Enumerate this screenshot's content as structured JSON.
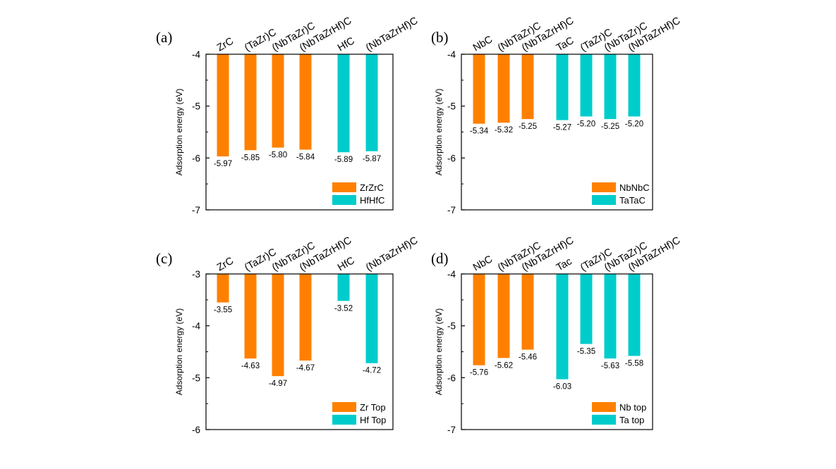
{
  "colors": {
    "orange": "#ff8000",
    "cyan": "#00cccc"
  },
  "chart_data": [
    {
      "panel": "(a)",
      "type": "bar",
      "ylabel": "Adsorption energy (eV)",
      "ylim": [
        -7,
        -4
      ],
      "yticks": [
        "-4",
        "-5",
        "-6",
        "-7"
      ],
      "categories": [
        "ZrC",
        "(TaZr)C",
        "(NbTaZr)C",
        "(NbTaZrHf)C",
        "HfC",
        "(NbTaZrHf)C"
      ],
      "values": [
        -5.97,
        -5.85,
        -5.8,
        -5.84,
        -5.89,
        -5.87
      ],
      "value_labels": [
        "-5.97",
        "-5.85",
        "-5.80",
        "-5.84",
        "-5.89",
        "-5.87"
      ],
      "series_index": [
        0,
        0,
        0,
        0,
        1,
        1
      ],
      "legend": [
        "ZrZrC",
        "HfHfC"
      ]
    },
    {
      "panel": "(b)",
      "type": "bar",
      "ylabel": "Adsorption energy (eV)",
      "ylim": [
        -7,
        -4
      ],
      "yticks": [
        "-4",
        "-5",
        "-6",
        "-7"
      ],
      "categories": [
        "NbC",
        "(NbTaZr)C",
        "(NbTaZrHf)C",
        "TaC",
        "(TaZr)C",
        "(NbTaZr)C",
        "(NbTaZrHf)C"
      ],
      "values": [
        -5.34,
        -5.32,
        -5.25,
        -5.27,
        -5.2,
        -5.25,
        -5.2
      ],
      "value_labels": [
        "-5.34",
        "-5.32",
        "-5.25",
        "-5.27",
        "-5.20",
        "-5.25",
        "-5.20"
      ],
      "series_index": [
        0,
        0,
        0,
        1,
        1,
        1,
        1
      ],
      "legend": [
        "NbNbC",
        "TaTaC"
      ]
    },
    {
      "panel": "(c)",
      "type": "bar",
      "ylabel": "Adsorption energy (eV)",
      "ylim": [
        -6,
        -3
      ],
      "yticks": [
        "-3",
        "-4",
        "-5",
        "-6"
      ],
      "categories": [
        "ZrC",
        "(TaZr)C",
        "(NbTaZr)C",
        "(NbTaZrHf)C",
        "HfC",
        "(NbTaZrHf)C"
      ],
      "values": [
        -3.55,
        -4.63,
        -4.97,
        -4.67,
        -3.52,
        -4.72
      ],
      "value_labels": [
        "-3.55",
        "-4.63",
        "-4.97",
        "-4.67",
        "-3.52",
        "-4.72"
      ],
      "series_index": [
        0,
        0,
        0,
        0,
        1,
        1
      ],
      "legend": [
        "Zr Top",
        "Hf Top"
      ]
    },
    {
      "panel": "(d)",
      "type": "bar",
      "ylabel": "Adsorption energy (eV)",
      "ylim": [
        -7,
        -4
      ],
      "yticks": [
        "-4",
        "-5",
        "-6",
        "-7"
      ],
      "categories": [
        "NbC",
        "(NbTaZr)C",
        "(NbTaZrHf)C",
        "Tac",
        "(TaZr)C",
        "(NbTaZr)C",
        "(NbTaZrHf)C"
      ],
      "values": [
        -5.76,
        -5.62,
        -5.46,
        -6.03,
        -5.35,
        -5.63,
        -5.58
      ],
      "value_labels": [
        "-5.76",
        "-5.62",
        "-5.46",
        "-6.03",
        "-5.35",
        "-5.63",
        "-5.58"
      ],
      "series_index": [
        0,
        0,
        0,
        1,
        1,
        1,
        1
      ],
      "legend": [
        "Nb top",
        "Ta top"
      ]
    }
  ]
}
